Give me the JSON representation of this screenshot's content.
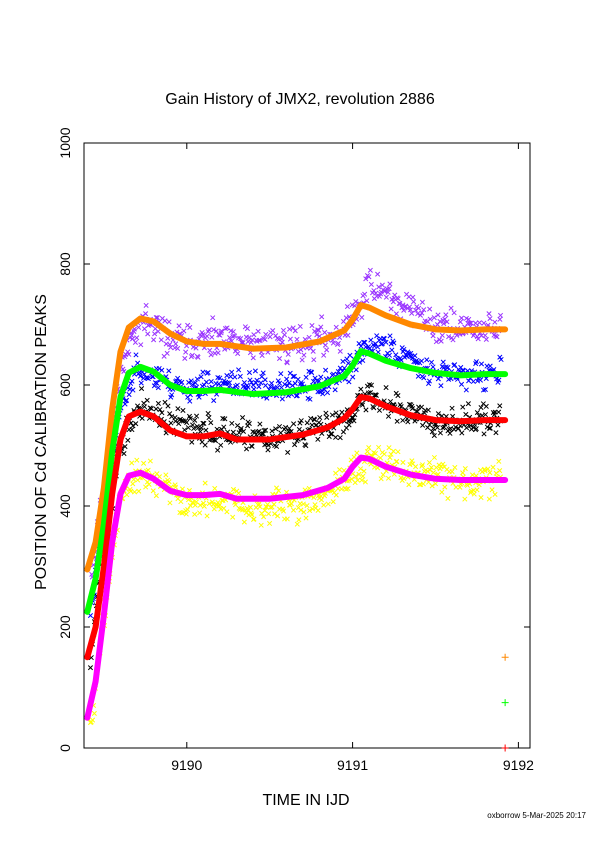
{
  "chart_data": {
    "type": "scatter",
    "title": "Gain History of JMX2, revolution 2886",
    "xlabel": "TIME IN IJD",
    "ylabel": "POSITION OF Cd CALIBRATION PEAKS",
    "footer": "oxborrow  5-Mar-2025 20:17",
    "xlim": [
      9189.38,
      9192.07
    ],
    "ylim": [
      0,
      1000
    ],
    "xticks": [
      {
        "value": 9190,
        "label": "9190"
      },
      {
        "value": 9191,
        "label": "9191"
      },
      {
        "value": 9192,
        "label": "9192"
      }
    ],
    "yticks": [
      {
        "value": 0,
        "label": "0"
      },
      {
        "value": 200,
        "label": "200"
      },
      {
        "value": 400,
        "label": "400"
      },
      {
        "value": 600,
        "label": "600"
      },
      {
        "value": 800,
        "label": "800"
      },
      {
        "value": 1000,
        "label": "1000"
      }
    ],
    "grid": false,
    "series": [
      {
        "kind": "scatter",
        "color": "#9933ff",
        "seed": 11,
        "noise": 18,
        "points": [
          [
            9189.42,
            270
          ],
          [
            9189.5,
            420
          ],
          [
            9189.6,
            620
          ],
          [
            9189.7,
            705
          ],
          [
            9189.8,
            695
          ],
          [
            9189.9,
            675
          ],
          [
            9190.0,
            670
          ],
          [
            9190.2,
            670
          ],
          [
            9190.4,
            670
          ],
          [
            9190.6,
            668
          ],
          [
            9190.8,
            675
          ],
          [
            9190.95,
            690
          ],
          [
            9191.0,
            715
          ],
          [
            9191.05,
            740
          ],
          [
            9191.1,
            760
          ],
          [
            9191.2,
            755
          ],
          [
            9191.3,
            730
          ],
          [
            9191.5,
            700
          ],
          [
            9191.7,
            690
          ],
          [
            9191.9,
            695
          ]
        ]
      },
      {
        "kind": "scatter",
        "color": "#0000ff",
        "seed": 23,
        "noise": 14,
        "points": [
          [
            9189.42,
            220
          ],
          [
            9189.5,
            380
          ],
          [
            9189.6,
            560
          ],
          [
            9189.7,
            630
          ],
          [
            9189.8,
            615
          ],
          [
            9189.9,
            600
          ],
          [
            9190.0,
            598
          ],
          [
            9190.2,
            600
          ],
          [
            9190.4,
            600
          ],
          [
            9190.6,
            595
          ],
          [
            9190.8,
            600
          ],
          [
            9190.95,
            620
          ],
          [
            9191.05,
            650
          ],
          [
            9191.15,
            670
          ],
          [
            9191.3,
            650
          ],
          [
            9191.5,
            625
          ],
          [
            9191.7,
            615
          ],
          [
            9191.9,
            620
          ]
        ]
      },
      {
        "kind": "scatter",
        "color": "#000000",
        "seed": 37,
        "noise": 16,
        "points": [
          [
            9189.42,
            150
          ],
          [
            9189.5,
            330
          ],
          [
            9189.6,
            500
          ],
          [
            9189.7,
            560
          ],
          [
            9189.8,
            555
          ],
          [
            9189.9,
            540
          ],
          [
            9190.0,
            530
          ],
          [
            9190.2,
            520
          ],
          [
            9190.4,
            510
          ],
          [
            9190.6,
            515
          ],
          [
            9190.8,
            525
          ],
          [
            9190.95,
            545
          ],
          [
            9191.05,
            570
          ],
          [
            9191.1,
            585
          ],
          [
            9191.3,
            560
          ],
          [
            9191.5,
            545
          ],
          [
            9191.7,
            540
          ],
          [
            9191.9,
            545
          ]
        ]
      },
      {
        "kind": "scatter",
        "color": "#ffff00",
        "seed": 49,
        "noise": 17,
        "points": [
          [
            9189.42,
            40
          ],
          [
            9189.5,
            230
          ],
          [
            9189.6,
            410
          ],
          [
            9189.7,
            455
          ],
          [
            9189.8,
            440
          ],
          [
            9189.9,
            420
          ],
          [
            9190.0,
            405
          ],
          [
            9190.2,
            405
          ],
          [
            9190.4,
            395
          ],
          [
            9190.6,
            400
          ],
          [
            9190.8,
            410
          ],
          [
            9190.95,
            430
          ],
          [
            9191.05,
            470
          ],
          [
            9191.1,
            480
          ],
          [
            9191.3,
            460
          ],
          [
            9191.5,
            450
          ],
          [
            9191.7,
            440
          ],
          [
            9191.9,
            445
          ]
        ]
      },
      {
        "kind": "line",
        "color": "#ff8800",
        "points": [
          [
            9189.4,
            295
          ],
          [
            9189.45,
            340
          ],
          [
            9189.5,
            430
          ],
          [
            9189.55,
            560
          ],
          [
            9189.6,
            655
          ],
          [
            9189.65,
            695
          ],
          [
            9189.72,
            710
          ],
          [
            9189.8,
            705
          ],
          [
            9189.9,
            685
          ],
          [
            9190.0,
            672
          ],
          [
            9190.1,
            668
          ],
          [
            9190.2,
            668
          ],
          [
            9190.4,
            660
          ],
          [
            9190.6,
            662
          ],
          [
            9190.8,
            672
          ],
          [
            9190.95,
            690
          ],
          [
            9191.0,
            708
          ],
          [
            9191.05,
            732
          ],
          [
            9191.1,
            728
          ],
          [
            9191.2,
            715
          ],
          [
            9191.35,
            700
          ],
          [
            9191.5,
            692
          ],
          [
            9191.65,
            690
          ],
          [
            9191.8,
            692
          ],
          [
            9191.92,
            692
          ]
        ]
      },
      {
        "kind": "line",
        "color": "#00ff00",
        "points": [
          [
            9189.4,
            225
          ],
          [
            9189.45,
            280
          ],
          [
            9189.5,
            370
          ],
          [
            9189.55,
            490
          ],
          [
            9189.6,
            580
          ],
          [
            9189.65,
            620
          ],
          [
            9189.72,
            630
          ],
          [
            9189.8,
            622
          ],
          [
            9189.9,
            600
          ],
          [
            9190.0,
            590
          ],
          [
            9190.1,
            590
          ],
          [
            9190.2,
            592
          ],
          [
            9190.4,
            585
          ],
          [
            9190.6,
            588
          ],
          [
            9190.8,
            598
          ],
          [
            9190.95,
            615
          ],
          [
            9191.0,
            632
          ],
          [
            9191.05,
            656
          ],
          [
            9191.1,
            652
          ],
          [
            9191.2,
            640
          ],
          [
            9191.35,
            628
          ],
          [
            9191.5,
            620
          ],
          [
            9191.65,
            616
          ],
          [
            9191.8,
            618
          ],
          [
            9191.92,
            618
          ]
        ]
      },
      {
        "kind": "line",
        "color": "#ff0000",
        "points": [
          [
            9189.4,
            150
          ],
          [
            9189.45,
            200
          ],
          [
            9189.5,
            300
          ],
          [
            9189.55,
            420
          ],
          [
            9189.6,
            510
          ],
          [
            9189.65,
            548
          ],
          [
            9189.72,
            556
          ],
          [
            9189.8,
            548
          ],
          [
            9189.9,
            525
          ],
          [
            9190.0,
            515
          ],
          [
            9190.1,
            515
          ],
          [
            9190.2,
            520
          ],
          [
            9190.3,
            510
          ],
          [
            9190.5,
            510
          ],
          [
            9190.7,
            518
          ],
          [
            9190.85,
            530
          ],
          [
            9190.95,
            545
          ],
          [
            9191.0,
            560
          ],
          [
            9191.05,
            580
          ],
          [
            9191.1,
            578
          ],
          [
            9191.2,
            565
          ],
          [
            9191.35,
            550
          ],
          [
            9191.5,
            542
          ],
          [
            9191.65,
            540
          ],
          [
            9191.8,
            542
          ],
          [
            9191.92,
            542
          ]
        ]
      },
      {
        "kind": "line",
        "color": "#ff00ff",
        "points": [
          [
            9189.4,
            50
          ],
          [
            9189.45,
            110
          ],
          [
            9189.5,
            220
          ],
          [
            9189.55,
            340
          ],
          [
            9189.6,
            420
          ],
          [
            9189.65,
            450
          ],
          [
            9189.72,
            455
          ],
          [
            9189.8,
            445
          ],
          [
            9189.9,
            425
          ],
          [
            9190.0,
            418
          ],
          [
            9190.1,
            418
          ],
          [
            9190.2,
            420
          ],
          [
            9190.3,
            412
          ],
          [
            9190.5,
            412
          ],
          [
            9190.7,
            418
          ],
          [
            9190.85,
            430
          ],
          [
            9190.95,
            445
          ],
          [
            9191.0,
            465
          ],
          [
            9191.05,
            480
          ],
          [
            9191.1,
            478
          ],
          [
            9191.2,
            465
          ],
          [
            9191.35,
            452
          ],
          [
            9191.5,
            445
          ],
          [
            9191.65,
            443
          ],
          [
            9191.8,
            443
          ],
          [
            9191.92,
            443
          ]
        ]
      },
      {
        "kind": "marker",
        "color": "#ff8800",
        "points": [
          [
            9191.92,
            150
          ]
        ]
      },
      {
        "kind": "marker",
        "color": "#00ff00",
        "points": [
          [
            9191.92,
            75
          ]
        ]
      },
      {
        "kind": "marker",
        "color": "#ff0000",
        "points": [
          [
            9191.92,
            0
          ]
        ]
      }
    ]
  }
}
